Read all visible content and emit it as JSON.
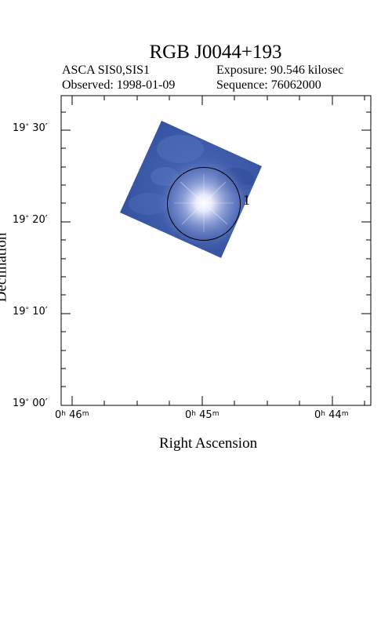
{
  "title": "RGB J0044+193",
  "instrument": "ASCA SIS0,SIS1",
  "exposure": "Exposure: 90.546 kilosec",
  "observed": "Observed: 1998-01-09",
  "sequence": "Sequence: 76062000",
  "xlabel": "Right Ascension",
  "ylabel": "Declination",
  "source_label": "1",
  "x_ticks": [
    {
      "h": "0",
      "m": "46"
    },
    {
      "h": "0",
      "m": "45"
    },
    {
      "h": "0",
      "m": "44"
    }
  ],
  "y_ticks": [
    {
      "deg": "19",
      "min": "30"
    },
    {
      "deg": "19",
      "min": "20"
    },
    {
      "deg": "19",
      "min": "10"
    },
    {
      "deg": "19",
      "min": "00"
    }
  ],
  "colors": {
    "image_blue": "#3a5aa8",
    "source_core": "#ffffff",
    "frame": "#000000"
  }
}
